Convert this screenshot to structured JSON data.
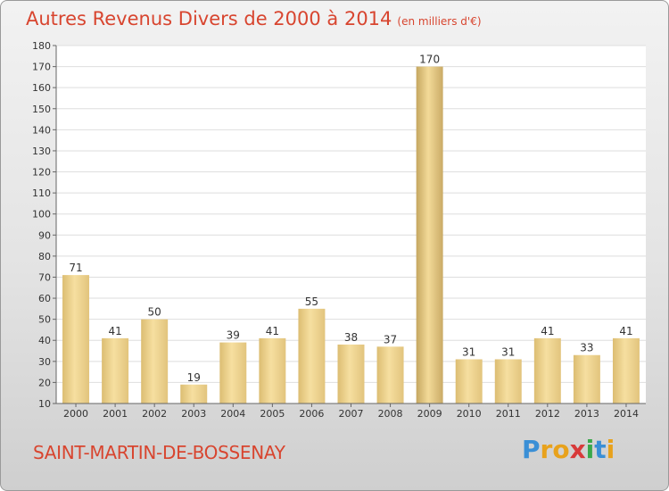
{
  "header": {
    "title": "Autres Revenus Divers de 2000 à 2014",
    "subtitle": "(en milliers d'€)"
  },
  "footer": {
    "commune": "SAINT-MARTIN-DE-BOSSENAY",
    "brand_letters": [
      "P",
      "r",
      "o",
      "x",
      "i",
      "t",
      "i"
    ],
    "brand_colors": [
      "#3a8fd6",
      "#e8a21c",
      "#e8a21c",
      "#d83a3a",
      "#3aa84a",
      "#3a8fd6",
      "#e8a21c"
    ]
  },
  "colors": {
    "title": "#d8452f",
    "bar_light": "#f6dfa0",
    "bar_dark": "#ddbf75",
    "bar_highlight_dark": "#c7a862",
    "highlight_year": "2009"
  },
  "chart_data": {
    "type": "bar",
    "categories": [
      "2000",
      "2001",
      "2002",
      "2003",
      "2004",
      "2005",
      "2006",
      "2007",
      "2008",
      "2009",
      "2010",
      "2011",
      "2012",
      "2013",
      "2014"
    ],
    "values": [
      71,
      41,
      50,
      19,
      39,
      41,
      55,
      38,
      37,
      170,
      31,
      31,
      41,
      33,
      41
    ],
    "ylim": [
      10,
      180
    ],
    "yticks": [
      10,
      20,
      30,
      40,
      50,
      60,
      70,
      80,
      90,
      100,
      110,
      120,
      130,
      140,
      150,
      160,
      170,
      180
    ],
    "grid": true,
    "data_labels": true
  }
}
